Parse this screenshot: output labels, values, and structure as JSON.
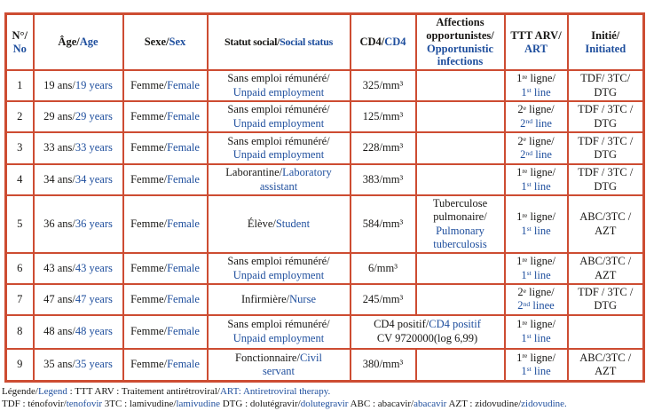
{
  "colors": {
    "table_border": "#cd4c32",
    "french_text": "#181715",
    "english_text": "#1e4e9d",
    "background": "#ffffff"
  },
  "table": {
    "header": [
      {
        "key": "no",
        "segs": [
          {
            "t": "N°/\n",
            "c": "fr"
          },
          {
            "t": "No",
            "c": "en"
          }
        ]
      },
      {
        "key": "age",
        "segs": [
          {
            "t": "Âge/",
            "c": "fr"
          },
          {
            "t": "Age",
            "c": "en"
          }
        ]
      },
      {
        "key": "sex",
        "segs": [
          {
            "t": "Sexe/",
            "c": "fr"
          },
          {
            "t": "Sex",
            "c": "en"
          }
        ]
      },
      {
        "key": "social-status",
        "segs": [
          {
            "t": "Statut social/",
            "c": "fr"
          },
          {
            "t": "Social status",
            "c": "en"
          }
        ]
      },
      {
        "key": "cd4",
        "segs": [
          {
            "t": "CD4/",
            "c": "fr"
          },
          {
            "t": "CD4",
            "c": "en"
          }
        ]
      },
      {
        "key": "opportunistic-infections",
        "segs": [
          {
            "t": "Affections\nopportunistes/\n",
            "c": "fr"
          },
          {
            "t": "Opportunistic\ninfections",
            "c": "en"
          }
        ]
      },
      {
        "key": "ttt-arv",
        "segs": [
          {
            "t": "TTT ARV/\n",
            "c": "fr"
          },
          {
            "t": "ART",
            "c": "en"
          }
        ]
      },
      {
        "key": "initiated",
        "segs": [
          {
            "t": "Initié/\n",
            "c": "fr"
          },
          {
            "t": "Initiated",
            "c": "en"
          }
        ]
      }
    ],
    "rows": [
      {
        "cells": [
          {
            "segs": [
              {
                "t": "1",
                "c": "fr"
              }
            ]
          },
          {
            "segs": [
              {
                "t": "19 ans/",
                "c": "fr"
              },
              {
                "t": "19 years",
                "c": "en"
              }
            ]
          },
          {
            "segs": [
              {
                "t": "Femme/",
                "c": "fr"
              },
              {
                "t": "Female",
                "c": "en"
              }
            ]
          },
          {
            "segs": [
              {
                "t": "Sans emploi rémunéré/\n",
                "c": "fr"
              },
              {
                "t": "Unpaid employment",
                "c": "en"
              }
            ]
          },
          {
            "segs": [
              {
                "t": "325/mm³",
                "c": "fr"
              }
            ]
          },
          {
            "segs": []
          },
          {
            "segs": [
              {
                "t": "1^{re} ligne/\n",
                "c": "fr"
              },
              {
                "t": "1^{st} line",
                "c": "en"
              }
            ]
          },
          {
            "segs": [
              {
                "t": "TDF/ 3TC/\nDTG",
                "c": "fr"
              }
            ]
          }
        ]
      },
      {
        "cells": [
          {
            "segs": [
              {
                "t": "2",
                "c": "fr"
              }
            ]
          },
          {
            "segs": [
              {
                "t": "29 ans/",
                "c": "fr"
              },
              {
                "t": "29 years",
                "c": "en"
              }
            ]
          },
          {
            "segs": [
              {
                "t": "Femme/",
                "c": "fr"
              },
              {
                "t": "Female",
                "c": "en"
              }
            ]
          },
          {
            "segs": [
              {
                "t": "Sans emploi rémunéré/\n",
                "c": "fr"
              },
              {
                "t": "Unpaid employment",
                "c": "en"
              }
            ]
          },
          {
            "segs": [
              {
                "t": "125/mm³",
                "c": "fr"
              }
            ]
          },
          {
            "segs": []
          },
          {
            "segs": [
              {
                "t": "2^{e} ligne/\n",
                "c": "fr"
              },
              {
                "t": "2^{nd} line",
                "c": "en"
              }
            ]
          },
          {
            "segs": [
              {
                "t": "TDF / 3TC /\nDTG",
                "c": "fr"
              }
            ]
          }
        ]
      },
      {
        "cells": [
          {
            "segs": [
              {
                "t": "3",
                "c": "fr"
              }
            ]
          },
          {
            "segs": [
              {
                "t": "33 ans/",
                "c": "fr"
              },
              {
                "t": "33 years",
                "c": "en"
              }
            ]
          },
          {
            "segs": [
              {
                "t": "Femme/",
                "c": "fr"
              },
              {
                "t": "Female",
                "c": "en"
              }
            ]
          },
          {
            "segs": [
              {
                "t": "Sans emploi rémunéré/\n",
                "c": "fr"
              },
              {
                "t": "Unpaid employment",
                "c": "en"
              }
            ]
          },
          {
            "segs": [
              {
                "t": "228/mm³",
                "c": "fr"
              }
            ]
          },
          {
            "segs": []
          },
          {
            "segs": [
              {
                "t": "2^{e} ligne/\n",
                "c": "fr"
              },
              {
                "t": "2^{nd} line",
                "c": "en"
              }
            ]
          },
          {
            "segs": [
              {
                "t": "TDF / 3TC /\nDTG",
                "c": "fr"
              }
            ]
          }
        ]
      },
      {
        "cells": [
          {
            "segs": [
              {
                "t": "4",
                "c": "fr"
              }
            ]
          },
          {
            "segs": [
              {
                "t": "34 ans/",
                "c": "fr"
              },
              {
                "t": "34 years",
                "c": "en"
              }
            ]
          },
          {
            "segs": [
              {
                "t": "Femme/",
                "c": "fr"
              },
              {
                "t": "Female",
                "c": "en"
              }
            ]
          },
          {
            "segs": [
              {
                "t": "Laborantine/",
                "c": "fr"
              },
              {
                "t": "Laboratory\nassistant",
                "c": "en"
              }
            ]
          },
          {
            "segs": [
              {
                "t": "383/mm³",
                "c": "fr"
              }
            ]
          },
          {
            "segs": []
          },
          {
            "segs": [
              {
                "t": "1^{re} ligne/\n",
                "c": "fr"
              },
              {
                "t": "1^{st} line",
                "c": "en"
              }
            ]
          },
          {
            "segs": [
              {
                "t": "TDF / 3TC /\nDTG",
                "c": "fr"
              }
            ]
          }
        ]
      },
      {
        "cells": [
          {
            "segs": [
              {
                "t": "5",
                "c": "fr"
              }
            ]
          },
          {
            "segs": [
              {
                "t": "36 ans/",
                "c": "fr"
              },
              {
                "t": "36 years",
                "c": "en"
              }
            ]
          },
          {
            "segs": [
              {
                "t": "Femme/",
                "c": "fr"
              },
              {
                "t": "Female",
                "c": "en"
              }
            ]
          },
          {
            "segs": [
              {
                "t": "Élève/",
                "c": "fr"
              },
              {
                "t": "Student",
                "c": "en"
              }
            ]
          },
          {
            "segs": [
              {
                "t": "584/mm³",
                "c": "fr"
              }
            ]
          },
          {
            "segs": [
              {
                "t": "Tuberculose\npulmonaire/\n",
                "c": "fr"
              },
              {
                "t": "Pulmonary\ntuberculosis",
                "c": "en"
              }
            ]
          },
          {
            "segs": [
              {
                "t": "1^{re} ligne/\n",
                "c": "fr"
              },
              {
                "t": "1^{st} line",
                "c": "en"
              }
            ]
          },
          {
            "segs": [
              {
                "t": "ABC/3TC /\nAZT",
                "c": "fr"
              }
            ]
          }
        ]
      },
      {
        "cells": [
          {
            "segs": [
              {
                "t": "6",
                "c": "fr"
              }
            ]
          },
          {
            "segs": [
              {
                "t": "43 ans/",
                "c": "fr"
              },
              {
                "t": "43 years",
                "c": "en"
              }
            ]
          },
          {
            "segs": [
              {
                "t": "Femme/",
                "c": "fr"
              },
              {
                "t": "Female",
                "c": "en"
              }
            ]
          },
          {
            "segs": [
              {
                "t": "Sans emploi rémunéré/\n",
                "c": "fr"
              },
              {
                "t": "Unpaid employment",
                "c": "en"
              }
            ]
          },
          {
            "segs": [
              {
                "t": "6/mm³",
                "c": "fr"
              }
            ]
          },
          {
            "segs": []
          },
          {
            "segs": [
              {
                "t": "1^{re} ligne/\n",
                "c": "fr"
              },
              {
                "t": "1^{st} line",
                "c": "en"
              }
            ]
          },
          {
            "segs": [
              {
                "t": "ABC/3TC /\nAZT",
                "c": "fr"
              }
            ]
          }
        ]
      },
      {
        "cells": [
          {
            "segs": [
              {
                "t": "7",
                "c": "fr"
              }
            ]
          },
          {
            "segs": [
              {
                "t": "47 ans/",
                "c": "fr"
              },
              {
                "t": "47 years",
                "c": "en"
              }
            ]
          },
          {
            "segs": [
              {
                "t": "Femme/",
                "c": "fr"
              },
              {
                "t": "Female",
                "c": "en"
              }
            ]
          },
          {
            "segs": [
              {
                "t": "Infirmière/",
                "c": "fr"
              },
              {
                "t": "Nurse",
                "c": "en"
              }
            ]
          },
          {
            "segs": [
              {
                "t": "245/mm³",
                "c": "fr"
              }
            ]
          },
          {
            "segs": []
          },
          {
            "segs": [
              {
                "t": "2^{e} ligne/\n",
                "c": "fr"
              },
              {
                "t": "2^{nd} linee",
                "c": "en"
              }
            ]
          },
          {
            "segs": [
              {
                "t": "TDF / 3TC /\nDTG",
                "c": "fr"
              }
            ]
          }
        ]
      },
      {
        "cells": [
          {
            "segs": [
              {
                "t": "8",
                "c": "fr"
              }
            ]
          },
          {
            "segs": [
              {
                "t": "48 ans/",
                "c": "fr"
              },
              {
                "t": "48 years",
                "c": "en"
              }
            ]
          },
          {
            "segs": [
              {
                "t": "Femme/",
                "c": "fr"
              },
              {
                "t": "Female",
                "c": "en"
              }
            ]
          },
          {
            "segs": [
              {
                "t": "Sans emploi rémunéré/\n",
                "c": "fr"
              },
              {
                "t": "Unpaid employment",
                "c": "en"
              }
            ]
          },
          {
            "span": 2,
            "segs": [
              {
                "t": "CD4 positif/",
                "c": "fr"
              },
              {
                "t": "CD4 positif",
                "c": "en"
              },
              {
                "t": "\nCV 9720000(log 6,99)",
                "c": "fr"
              }
            ]
          },
          {
            "segs": [
              {
                "t": "1^{re} ligne/\n",
                "c": "fr"
              },
              {
                "t": "1^{st} line",
                "c": "en"
              }
            ]
          },
          {
            "segs": []
          }
        ]
      },
      {
        "cells": [
          {
            "segs": [
              {
                "t": "9",
                "c": "fr"
              }
            ]
          },
          {
            "segs": [
              {
                "t": "35 ans/",
                "c": "fr"
              },
              {
                "t": "35 years",
                "c": "en"
              }
            ]
          },
          {
            "segs": [
              {
                "t": "Femme/",
                "c": "fr"
              },
              {
                "t": "Female",
                "c": "en"
              }
            ]
          },
          {
            "segs": [
              {
                "t": "Fonctionnaire/",
                "c": "fr"
              },
              {
                "t": "Civil\nservant",
                "c": "en"
              }
            ]
          },
          {
            "segs": [
              {
                "t": "380/mm³",
                "c": "fr"
              }
            ]
          },
          {
            "segs": []
          },
          {
            "segs": [
              {
                "t": "1^{re} ligne/\n",
                "c": "fr"
              },
              {
                "t": "1^{st} line",
                "c": "en"
              }
            ]
          },
          {
            "segs": [
              {
                "t": "ABC/3TC /\nAZT",
                "c": "fr"
              }
            ]
          }
        ]
      }
    ]
  },
  "legend": {
    "lines": [
      {
        "segs": [
          {
            "t": "Légende/",
            "c": "fr"
          },
          {
            "t": "Legend",
            "c": "en"
          },
          {
            "t": " : TTT ARV : Traitement antirétroviral/",
            "c": "fr"
          },
          {
            "t": "ART: Antiretroviral therapy.",
            "c": "en"
          }
        ]
      },
      {
        "segs": [
          {
            "t": "TDF : ténofovir/",
            "c": "fr"
          },
          {
            "t": "tenofovir",
            "c": "en"
          },
          {
            "t": " 3TC : lamivudine/",
            "c": "fr"
          },
          {
            "t": "lamivudine",
            "c": "en"
          },
          {
            "t": " DTG : dolutégravir/",
            "c": "fr"
          },
          {
            "t": "dolutegravir",
            "c": "en"
          },
          {
            "t": " ABC : abacavir/",
            "c": "fr"
          },
          {
            "t": "abacavir",
            "c": "en"
          },
          {
            "t": " AZT : zidovudine/",
            "c": "fr"
          },
          {
            "t": "zidovudine.",
            "c": "en"
          }
        ]
      }
    ]
  }
}
